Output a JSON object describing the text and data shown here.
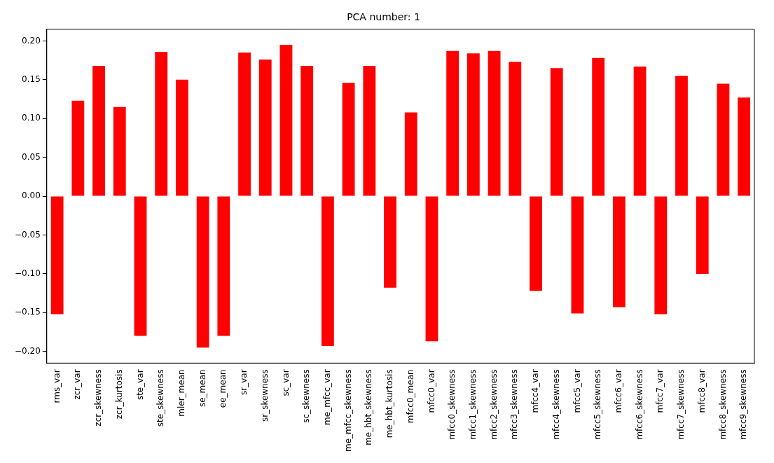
{
  "chart_data": {
    "type": "bar",
    "title": "PCA number: 1",
    "categories": [
      "rms_var",
      "zcr_var",
      "zcr_skewness",
      "zcr_kurtosis",
      "ste_var",
      "ste_skewness",
      "mler_mean",
      "se_mean",
      "ee_mean",
      "sr_var",
      "sr_skewness",
      "sc_var",
      "sc_skewness",
      "me_mfcc_var",
      "me_mfcc_skewness",
      "me_hbt_skewness",
      "me_hbt_kurtosis",
      "mfcc0_mean",
      "mfcc0_var",
      "mfcc0_skewness",
      "mfcc1_skewness",
      "mfcc2_skewness",
      "mfcc3_skewness",
      "mfcc4_var",
      "mfcc4_skewness",
      "mfcc5_var",
      "mfcc5_skewness",
      "mfcc6_var",
      "mfcc6_skewness",
      "mfcc7_var",
      "mfcc7_skewness",
      "mfcc8_var",
      "mfcc8_skewness",
      "mfcc9_skewness"
    ],
    "values": [
      -0.152,
      0.123,
      0.168,
      0.115,
      -0.18,
      0.186,
      0.15,
      -0.195,
      -0.18,
      0.185,
      0.176,
      0.195,
      0.168,
      -0.193,
      0.146,
      0.168,
      -0.118,
      0.108,
      -0.187,
      0.187,
      0.184,
      0.187,
      0.173,
      -0.122,
      0.165,
      -0.151,
      0.178,
      -0.143,
      0.167,
      -0.152,
      0.155,
      -0.1,
      0.145,
      0.127
    ],
    "color": "#ff0000",
    "ylim": [
      -0.215,
      0.215
    ],
    "yticks": [
      {
        "value": -0.2,
        "label": "−0.20"
      },
      {
        "value": -0.15,
        "label": "−0.15"
      },
      {
        "value": -0.1,
        "label": "−0.10"
      },
      {
        "value": -0.05,
        "label": "−0.05"
      },
      {
        "value": 0,
        "label": "0.00"
      },
      {
        "value": 0.05,
        "label": "0.05"
      },
      {
        "value": 0.1,
        "label": "0.10"
      },
      {
        "value": 0.15,
        "label": "0.15"
      },
      {
        "value": 0.2,
        "label": "0.20"
      }
    ],
    "grid": false,
    "legend": false
  }
}
